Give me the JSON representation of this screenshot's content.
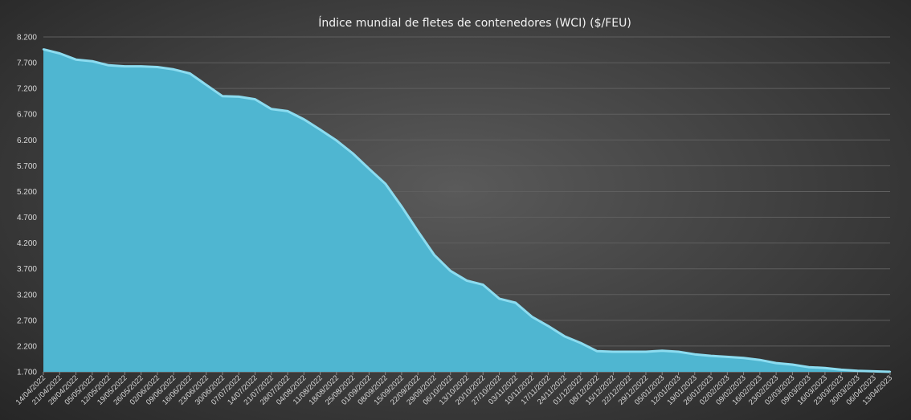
{
  "chart_data": {
    "type": "area",
    "title": "Índice mundial de fletes de contenedores (WCI) ($/FEU)",
    "ylim": [
      1700,
      8200
    ],
    "yticks": [
      "1.700",
      "2.200",
      "2.700",
      "3.200",
      "3.700",
      "4.200",
      "4.700",
      "5.200",
      "5.700",
      "6.200",
      "6.700",
      "7.200",
      "7.700",
      "8.200"
    ],
    "grid": true,
    "legend": "none",
    "x": [
      "14/04/2022",
      "21/04/2022",
      "28/04/2022",
      "05/05/2022",
      "12/05/2022",
      "19/05/2022",
      "26/05/2022",
      "02/06/2022",
      "09/06/2022",
      "16/06/2022",
      "23/06/2022",
      "30/06/2022",
      "07/07/2022",
      "14/07/2022",
      "21/07/2022",
      "28/07/2022",
      "04/08/2022",
      "11/08/2022",
      "18/08/2022",
      "25/08/2022",
      "01/09/2022",
      "08/09/2022",
      "15/09/2022",
      "22/09/2022",
      "29/09/2022",
      "06/10/2022",
      "13/10/2022",
      "20/10/2022",
      "27/10/2022",
      "03/11/2022",
      "10/11/2022",
      "17/11/2022",
      "24/11/2022",
      "01/12/2022",
      "08/12/2022",
      "15/12/2022",
      "22/12/2022",
      "29/12/2022",
      "05/01/2023",
      "12/01/2023",
      "19/01/2023",
      "26/01/2023",
      "02/02/2023",
      "09/02/2023",
      "16/02/2023",
      "23/02/2023",
      "02/03/2023",
      "09/03/2023",
      "16/03/2023",
      "23/03/2023",
      "30/03/2023",
      "06/04/2023",
      "13/04/2023"
    ],
    "values": [
      7960,
      7880,
      7760,
      7730,
      7650,
      7630,
      7630,
      7615,
      7570,
      7490,
      7270,
      7050,
      7040,
      6990,
      6800,
      6760,
      6600,
      6400,
      6190,
      5940,
      5640,
      5350,
      4910,
      4430,
      3970,
      3660,
      3470,
      3390,
      3120,
      3040,
      2770,
      2590,
      2390,
      2260,
      2100,
      2090,
      2090,
      2090,
      2110,
      2090,
      2040,
      2010,
      1990,
      1970,
      1930,
      1870,
      1840,
      1790,
      1775,
      1740,
      1720,
      1710,
      1700
    ],
    "colors": {
      "fill": "#4fb6d1",
      "line": "#8cdcf0"
    }
  }
}
